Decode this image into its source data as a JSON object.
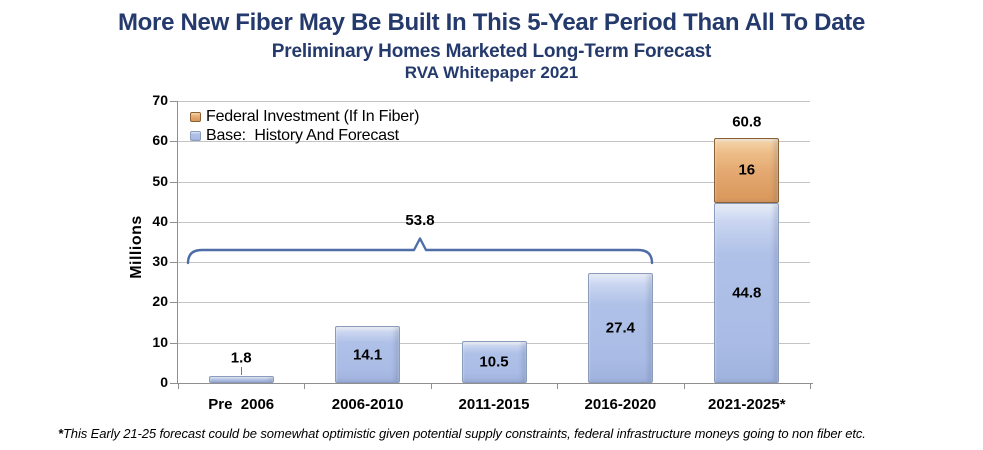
{
  "header": {
    "title": "More New Fiber May Be Built In This 5-Year Period Than All To Date",
    "subtitle": "Preliminary Homes Marketed Long-Term Forecast",
    "source_line": "RVA Whitepaper 2021",
    "title_color": "#253a6c"
  },
  "legend": {
    "items": [
      {
        "label": "Federal Investment (If In Fiber)",
        "color": "#e3a76f"
      },
      {
        "label": "Base:  History And Forecast",
        "color": "#aabce5"
      }
    ]
  },
  "footnote": {
    "marker": "*",
    "text": "This Early 21-25 forecast could be somewhat optimistic given potential supply constraints, federal infrastructure moneys going to non fiber etc."
  },
  "chart_data": {
    "type": "bar",
    "stacked": true,
    "categories": [
      "Pre  2006",
      "2006-2010",
      "2011-2015",
      "2016-2020",
      "2021-2025*"
    ],
    "series": [
      {
        "name": "Base:  History And Forecast",
        "values": [
          1.8,
          14.1,
          10.5,
          27.4,
          44.8
        ],
        "color": "#aabce5"
      },
      {
        "name": "Federal Investment (If In Fiber)",
        "values": [
          0,
          0,
          0,
          0,
          16
        ],
        "color": "#e3a76f"
      }
    ],
    "totals": [
      null,
      null,
      null,
      null,
      60.8
    ],
    "annotation": {
      "label": "53.8",
      "bracket_span": [
        "Pre  2006",
        "2016-2020"
      ]
    },
    "ylabel": "Millions",
    "ylim": [
      0,
      70
    ],
    "ytick_step": 10,
    "grid": true,
    "legend_position": "top-left",
    "bar_value_labels": true,
    "gridline_color": "#c4c4c4",
    "axis_color": "#8f8f8f",
    "bracket_color": "#4f6ea8"
  }
}
